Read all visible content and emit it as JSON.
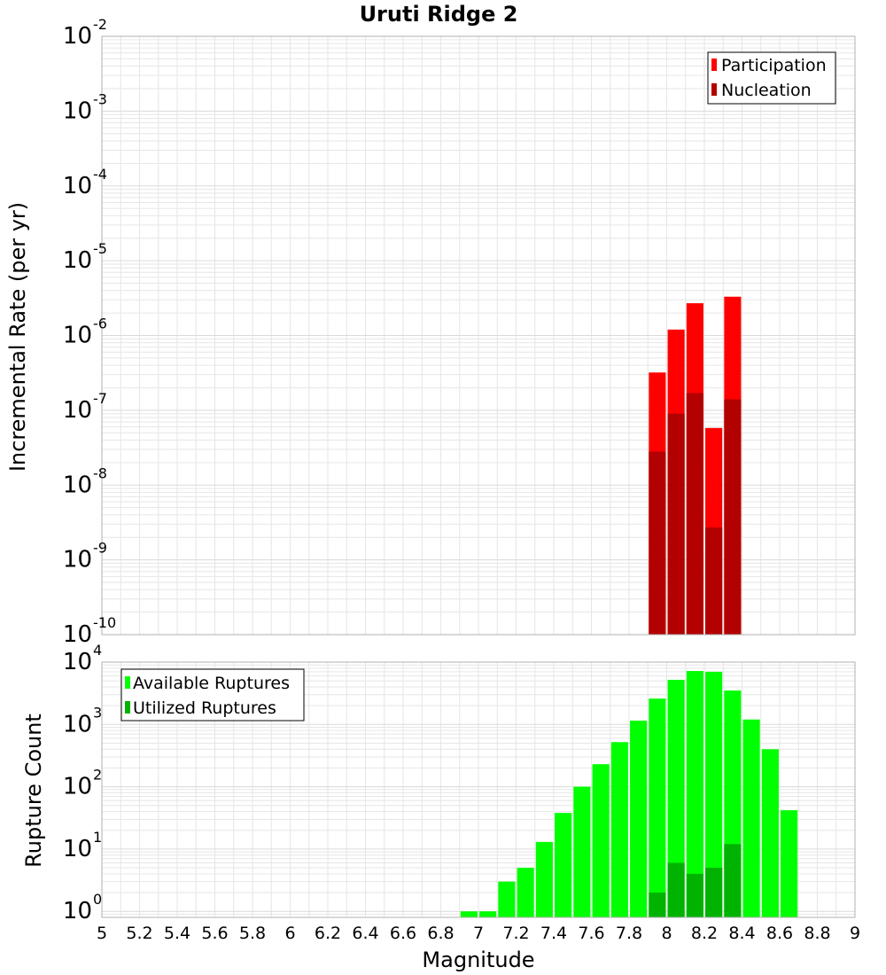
{
  "colors": {
    "participation": "#ff0000",
    "nucleation": "#b30000",
    "available": "#00ff00",
    "utilized": "#00b300",
    "grid": "#e6e6e6",
    "frame": "#b0b0b0"
  },
  "chart_data": [
    {
      "type": "bar",
      "title": "Uruti Ridge 2",
      "ylabel": "Incremental Rate (per yr)",
      "xlabel": "",
      "yscale": "log",
      "ylim": [
        1e-10,
        0.01
      ],
      "ytick_exponents": [
        "-10",
        "-9",
        "-8",
        "-7",
        "-6",
        "-5",
        "-4",
        "-3",
        "-2"
      ],
      "xlim": [
        5,
        9
      ],
      "grid": true,
      "legend": "top-right",
      "x": [
        7.95,
        8.05,
        8.15,
        8.25,
        8.35
      ],
      "series": [
        {
          "name": "Participation",
          "color": "#ff0000",
          "values": [
            3.2e-07,
            1.2e-06,
            2.7e-06,
            5.8e-08,
            3.3e-06
          ]
        },
        {
          "name": "Nucleation",
          "color": "#b30000",
          "values": [
            2.8e-08,
            9e-08,
            1.7e-07,
            2.7e-09,
            1.4e-07
          ]
        }
      ]
    },
    {
      "type": "bar",
      "title": "",
      "ylabel": "Rupture Count",
      "xlabel": "Magnitude",
      "yscale": "log",
      "ylim": [
        0.8,
        10000
      ],
      "ytick_exponents": [
        "0",
        "1",
        "2",
        "3",
        "4"
      ],
      "xlim": [
        5,
        9
      ],
      "xticks": [
        "5",
        "5.2",
        "5.4",
        "5.6",
        "5.8",
        "6",
        "6.2",
        "6.4",
        "6.6",
        "6.8",
        "7",
        "7.2",
        "7.4",
        "7.6",
        "7.8",
        "8",
        "8.2",
        "8.4",
        "8.6",
        "8.8",
        "9"
      ],
      "grid": true,
      "legend": "top-left",
      "x": [
        6.95,
        7.05,
        7.15,
        7.25,
        7.35,
        7.45,
        7.55,
        7.65,
        7.75,
        7.85,
        7.95,
        8.05,
        8.15,
        8.25,
        8.35,
        8.45,
        8.55,
        8.65
      ],
      "series": [
        {
          "name": "Available Ruptures",
          "color": "#00ff00",
          "values": [
            1,
            1,
            3,
            5,
            13,
            38,
            100,
            230,
            520,
            1150,
            2600,
            5200,
            7200,
            7000,
            3500,
            1200,
            400,
            42
          ]
        },
        {
          "name": "Utilized Ruptures",
          "color": "#00b300",
          "values": [
            0,
            0,
            0,
            0,
            0,
            0,
            0,
            0,
            0,
            0,
            2,
            6,
            4,
            5,
            12,
            0,
            0,
            0
          ]
        }
      ]
    }
  ]
}
